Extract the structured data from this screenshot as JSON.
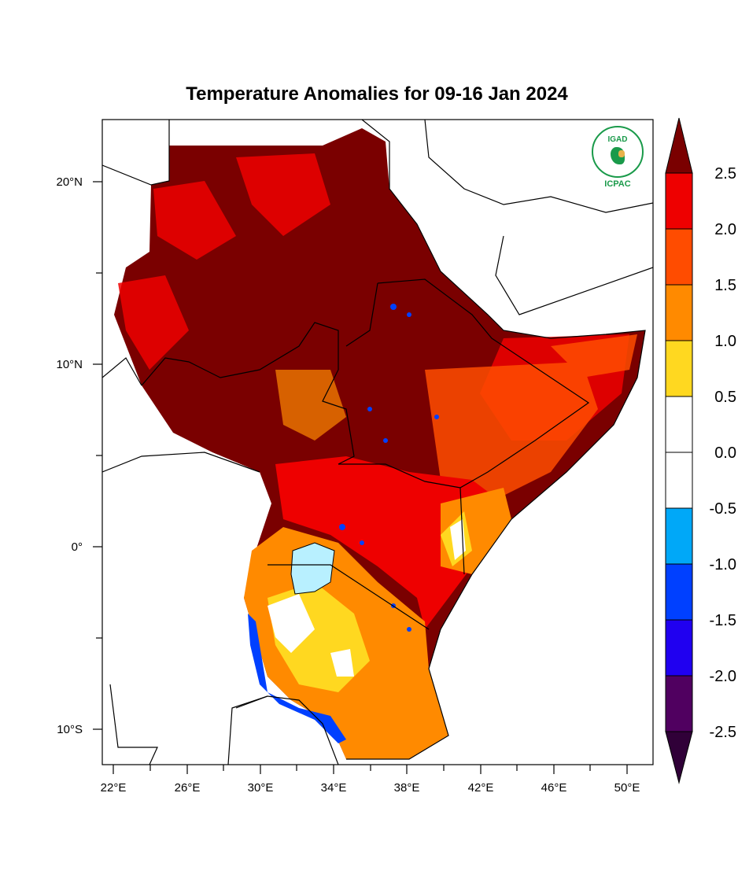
{
  "title": "Temperature Anomalies for 09-16 Jan 2024",
  "logo": {
    "top": "IGAD",
    "bottom": "ICPAC"
  },
  "axes": {
    "lat_labels": [
      "20°N",
      "10°N",
      "0°",
      "10°S"
    ],
    "lon_labels": [
      "22°E",
      "26°E",
      "30°E",
      "34°E",
      "38°E",
      "42°E",
      "46°E",
      "50°E"
    ]
  },
  "colorbar": {
    "labels": [
      "2.5",
      "2.0",
      "1.5",
      "1.0",
      "0.5",
      "0.0",
      "-0.5",
      "-1.0",
      "-1.5",
      "-2.0",
      "-2.5"
    ],
    "colors": [
      "#7a0000",
      "#ee0000",
      "#ff4c00",
      "#ff8a00",
      "#ffd820",
      "#ffffff",
      "#ffffff",
      "#00a8f8",
      "#0040ff",
      "#2000f0",
      "#500060",
      "#300038"
    ]
  }
}
